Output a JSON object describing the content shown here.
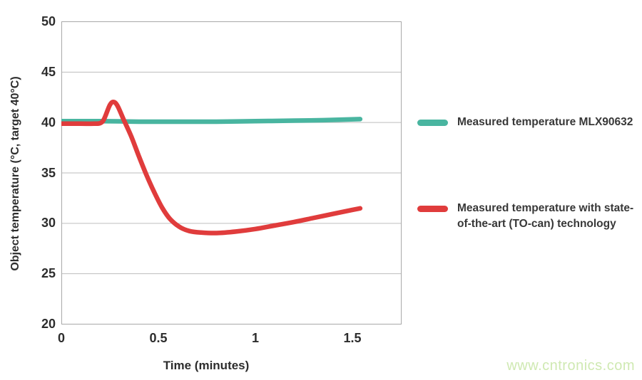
{
  "page": {
    "watermark": "www.cntronics.com"
  },
  "chart_data": {
    "type": "line",
    "title": "",
    "xlabel": "Time (minutes)",
    "ylabel": "Object temperature (°C, target 40°C)",
    "xlim": [
      0,
      1.75
    ],
    "ylim": [
      20,
      50
    ],
    "x_ticks": [
      0,
      0.5,
      1,
      1.5
    ],
    "x_tick_labels": [
      "0",
      "0.5",
      "1",
      "1.5"
    ],
    "y_ticks": [
      50,
      45,
      40,
      35,
      30,
      25,
      20
    ],
    "y_tick_labels": [
      "50",
      "45",
      "40",
      "35",
      "30",
      "25",
      "20"
    ],
    "grid": "horizontal-only",
    "legend_position": "right-of-plot",
    "colors": {
      "grid": "#bdbdbd",
      "plot_border": "#a9a9a9",
      "axis_text": "#2d2d2d",
      "watermark": "#cfe9b2"
    },
    "series": [
      {
        "name": "Measured temperature MLX90632",
        "color": "#49b5a0",
        "line_width": 6.5,
        "points": [
          [
            0,
            40.1
          ],
          [
            0.1,
            40.1
          ],
          [
            0.2,
            40.1
          ],
          [
            0.3,
            40.08
          ],
          [
            0.4,
            40.05
          ],
          [
            0.6,
            40.05
          ],
          [
            0.8,
            40.05
          ],
          [
            1.0,
            40.1
          ],
          [
            1.2,
            40.15
          ],
          [
            1.35,
            40.2
          ],
          [
            1.54,
            40.3
          ]
        ]
      },
      {
        "name": "Measured temperature with state-of-the-art (TO-can) technology",
        "color": "#e03c3c",
        "line_width": 6.5,
        "points": [
          [
            0,
            39.85
          ],
          [
            0.1,
            39.85
          ],
          [
            0.17,
            39.85
          ],
          [
            0.2,
            39.9
          ],
          [
            0.22,
            40.3
          ],
          [
            0.25,
            41.7
          ],
          [
            0.27,
            42.0
          ],
          [
            0.29,
            41.6
          ],
          [
            0.32,
            40.3
          ],
          [
            0.36,
            38.6
          ],
          [
            0.4,
            36.6
          ],
          [
            0.44,
            34.7
          ],
          [
            0.48,
            33.0
          ],
          [
            0.52,
            31.5
          ],
          [
            0.56,
            30.4
          ],
          [
            0.61,
            29.6
          ],
          [
            0.66,
            29.2
          ],
          [
            0.72,
            29.05
          ],
          [
            0.8,
            29.0
          ],
          [
            0.9,
            29.15
          ],
          [
            1.0,
            29.4
          ],
          [
            1.1,
            29.75
          ],
          [
            1.2,
            30.1
          ],
          [
            1.3,
            30.5
          ],
          [
            1.4,
            30.9
          ],
          [
            1.5,
            31.3
          ],
          [
            1.54,
            31.45
          ]
        ]
      }
    ]
  }
}
